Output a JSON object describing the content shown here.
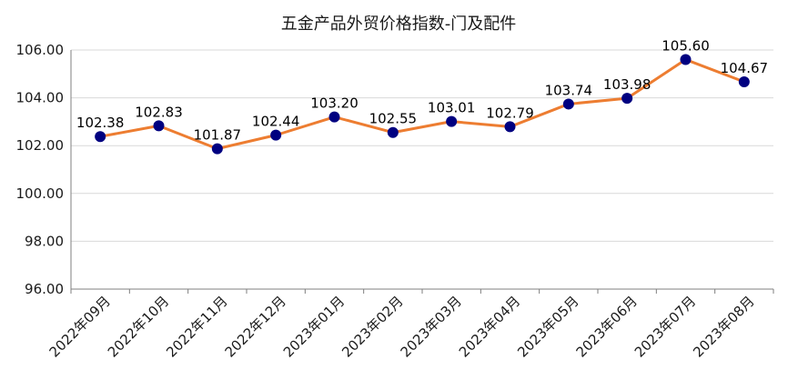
{
  "chart_data": {
    "type": "line",
    "title": "五金产品外贸价格指数-门及配件",
    "xlabel": "",
    "ylabel": "",
    "categories": [
      "2022年09月",
      "2022年10月",
      "2022年11月",
      "2022年12月",
      "2023年01月",
      "2023年02月",
      "2023年03月",
      "2023年04月",
      "2023年05月",
      "2023年06月",
      "2023年07月",
      "2023年08月"
    ],
    "series": [
      {
        "values": [
          102.38,
          102.83,
          101.87,
          102.44,
          103.2,
          102.55,
          103.01,
          102.79,
          103.74,
          103.98,
          105.6,
          104.67
        ]
      }
    ],
    "data_labels": [
      "102.38",
      "102.83",
      "101.87",
      "102.44",
      "103.20",
      "102.55",
      "103.01",
      "102.79",
      "103.74",
      "103.98",
      "105.60",
      "104.67"
    ],
    "ylim": [
      96,
      106
    ],
    "yticks": [
      "96.00",
      "98.00",
      "100.00",
      "102.00",
      "104.00",
      "106.00"
    ],
    "grid": true,
    "colors": {
      "line": "#ED7D31",
      "marker": "#000080",
      "grid": "#D9D9D9",
      "axis": "#7F7F7F"
    }
  }
}
